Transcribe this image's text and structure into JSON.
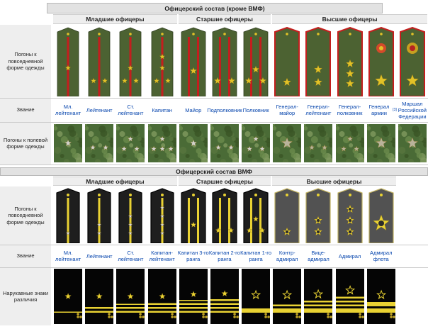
{
  "army": {
    "title": "Офицерский состав (кроме ВМФ)",
    "groups": [
      "Младшие офицеры",
      "Старшие офицеры",
      "Высшие офицеры"
    ],
    "row_daily": "Погоны к повседневной форме одежды",
    "row_rank": "Звание",
    "row_field": "Погоны к полевой форме одежды",
    "ranks": [
      {
        "name": "Мл. лейтенант"
      },
      {
        "name": "Лейтенант"
      },
      {
        "name": "Ст. лейтенант"
      },
      {
        "name": "Капитан"
      },
      {
        "name": "Майор"
      },
      {
        "name": "Подполковник"
      },
      {
        "name": "Полковник"
      },
      {
        "name": "Генерал-майор"
      },
      {
        "name": "Генерал-лейтенант"
      },
      {
        "name": "Генерал-полковник"
      },
      {
        "name": "Генерал армии",
        "note": "[3]"
      },
      {
        "name": "Маршал Российской Федерации"
      }
    ]
  },
  "navy": {
    "title": "Офицерский состав ВМФ",
    "groups": [
      "Младшие офицеры",
      "Старшие офицеры",
      "Высшие офицеры"
    ],
    "row_daily": "Погоны к повседневной форме одежды",
    "row_rank": "Звание",
    "row_sleeve": "Нарукавные знаки различия",
    "ranks": [
      {
        "name": "Мл. лейтенант"
      },
      {
        "name": "Лейтенант"
      },
      {
        "name": "Ст. лейтенант"
      },
      {
        "name": "Капитан-лейтенант"
      },
      {
        "name": "Капитан 3-го ранга"
      },
      {
        "name": "Капитан 2-го ранга"
      },
      {
        "name": "Капитан 1-го ранга"
      },
      {
        "name": "Контр-адмирал"
      },
      {
        "name": "Вице-адмирал"
      },
      {
        "name": "Адмирал"
      },
      {
        "name": "Адмирал флота"
      }
    ]
  },
  "colors": {
    "army_olive": "#4c6232",
    "army_red": "#c41e1e",
    "gold": "#e2c227",
    "field_green": "#4a6b36",
    "navy_black": "#1e1e1e",
    "navy_gold": "#e9d233",
    "navy_grey": "#3a3a3a",
    "link": "#0645ad"
  },
  "insignia": {
    "army_junior_daily": [
      {
        "stripes": 1,
        "stars": 1
      },
      {
        "stripes": 1,
        "stars": 2
      },
      {
        "stripes": 1,
        "stars": 3
      },
      {
        "stripes": 1,
        "stars": 4
      }
    ],
    "army_senior_daily": [
      {
        "stripes": 2,
        "stars": 1
      },
      {
        "stripes": 2,
        "stars": 2
      },
      {
        "stripes": 2,
        "stars": 3
      }
    ],
    "army_general_daily": [
      {
        "stars": 1
      },
      {
        "stars": 2
      },
      {
        "stars": 3
      },
      {
        "stars": 1,
        "emblem": "coat-of-arms"
      },
      {
        "stars": 1,
        "emblem": "eagle"
      }
    ],
    "navy_sleeve": [
      {
        "thin": 1,
        "medium": 0,
        "wide": 0
      },
      {
        "thin": 0,
        "medium": 2,
        "wide": 0
      },
      {
        "thin": 1,
        "medium": 2,
        "wide": 0
      },
      {
        "thin": 0,
        "medium": 3,
        "wide": 0
      },
      {
        "thin": 1,
        "medium": 3,
        "wide": 0
      },
      {
        "thin": 0,
        "medium": 4,
        "wide": 0
      },
      {
        "thin": 0,
        "medium": 0,
        "wide": 1
      },
      {
        "thin": 0,
        "medium": 1,
        "wide": 1
      },
      {
        "thin": 0,
        "medium": 2,
        "wide": 1
      },
      {
        "thin": 0,
        "medium": 3,
        "wide": 1
      },
      {
        "thin": 0,
        "medium": 0,
        "wide": 2
      }
    ]
  }
}
